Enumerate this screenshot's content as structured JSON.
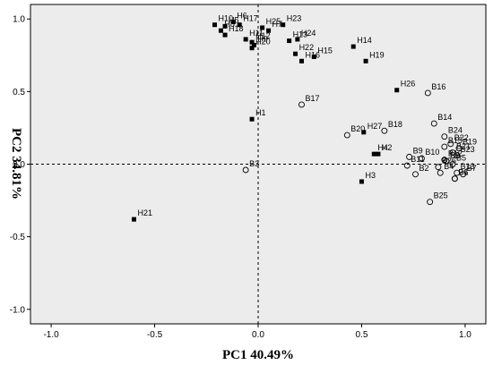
{
  "chart_data": {
    "type": "scatter",
    "title": "",
    "xlabel": "PC1 40.49%",
    "ylabel": "PC2 34.81%",
    "xlim": [
      -1.1,
      1.1
    ],
    "ylim": [
      -1.1,
      1.1
    ],
    "x_ticks": [
      "-1.0",
      "-0.5",
      "0.0",
      "0.5",
      "1.0"
    ],
    "y_ticks": [
      "1.0",
      "0.5",
      "0.0",
      "-0.5",
      "-1.0"
    ],
    "grid": false,
    "reference_lines": [
      0,
      0
    ],
    "plot_background": "#ececec",
    "series": [
      {
        "marker": "filled-square",
        "color": "#000000",
        "points": [
          {
            "label": "H1",
            "x": -0.03,
            "y": 0.31
          },
          {
            "label": "H2",
            "x": 0.58,
            "y": 0.07
          },
          {
            "label": "H3",
            "x": 0.5,
            "y": -0.12
          },
          {
            "label": "H4",
            "x": 0.56,
            "y": 0.07
          },
          {
            "label": "H5",
            "x": -0.16,
            "y": 0.95
          },
          {
            "label": "H6",
            "x": -0.12,
            "y": 0.98
          },
          {
            "label": "H7",
            "x": 0.05,
            "y": 0.92
          },
          {
            "label": "H8",
            "x": -0.18,
            "y": 0.92
          },
          {
            "label": "H9",
            "x": -0.02,
            "y": 0.82
          },
          {
            "label": "H10",
            "x": -0.21,
            "y": 0.96
          },
          {
            "label": "H11",
            "x": -0.06,
            "y": 0.86
          },
          {
            "label": "H12",
            "x": -0.03,
            "y": 0.84
          },
          {
            "label": "H13",
            "x": 0.15,
            "y": 0.85
          },
          {
            "label": "H14",
            "x": 0.46,
            "y": 0.81
          },
          {
            "label": "H15",
            "x": 0.27,
            "y": 0.74
          },
          {
            "label": "H16",
            "x": 0.21,
            "y": 0.71
          },
          {
            "label": "H17",
            "x": -0.09,
            "y": 0.96
          },
          {
            "label": "H18",
            "x": -0.16,
            "y": 0.89
          },
          {
            "label": "H19",
            "x": 0.52,
            "y": 0.71
          },
          {
            "label": "H20",
            "x": -0.03,
            "y": 0.8
          },
          {
            "label": "H21",
            "x": -0.6,
            "y": -0.38
          },
          {
            "label": "H22",
            "x": 0.18,
            "y": 0.76
          },
          {
            "label": "H23",
            "x": 0.12,
            "y": 0.96
          },
          {
            "label": "H24",
            "x": 0.19,
            "y": 0.86
          },
          {
            "label": "H25",
            "x": 0.02,
            "y": 0.94
          },
          {
            "label": "H26",
            "x": 0.67,
            "y": 0.51
          },
          {
            "label": "H27",
            "x": 0.51,
            "y": 0.22
          }
        ]
      },
      {
        "marker": "open-circle",
        "color": "#000000",
        "points": [
          {
            "label": "B1",
            "x": 0.95,
            "y": -0.1
          },
          {
            "label": "B2",
            "x": 0.76,
            "y": -0.07
          },
          {
            "label": "B3",
            "x": -0.06,
            "y": -0.04
          },
          {
            "label": "B4",
            "x": 0.88,
            "y": -0.06
          },
          {
            "label": "B5",
            "x": 0.94,
            "y": 0.0
          },
          {
            "label": "B6",
            "x": 0.95,
            "y": -0.1
          },
          {
            "label": "B7",
            "x": 0.99,
            "y": -0.07
          },
          {
            "label": "B8",
            "x": 0.91,
            "y": 0.02
          },
          {
            "label": "B9",
            "x": 0.73,
            "y": 0.05
          },
          {
            "label": "B10",
            "x": 0.79,
            "y": 0.04
          },
          {
            "label": "B11",
            "x": 0.72,
            "y": -0.01
          },
          {
            "label": "B12",
            "x": 0.9,
            "y": 0.03
          },
          {
            "label": "B13",
            "x": 0.96,
            "y": -0.06
          },
          {
            "label": "B14",
            "x": 0.85,
            "y": 0.28
          },
          {
            "label": "B15",
            "x": 0.9,
            "y": 0.12
          },
          {
            "label": "B16",
            "x": 0.82,
            "y": 0.49
          },
          {
            "label": "B17",
            "x": 0.21,
            "y": 0.41
          },
          {
            "label": "B18",
            "x": 0.61,
            "y": 0.23
          },
          {
            "label": "B19",
            "x": 0.97,
            "y": 0.11
          },
          {
            "label": "B20",
            "x": 0.43,
            "y": 0.2
          },
          {
            "label": "B21",
            "x": 0.94,
            "y": 0.08
          },
          {
            "label": "B22",
            "x": 0.93,
            "y": 0.14
          },
          {
            "label": "B23",
            "x": 0.96,
            "y": 0.06
          },
          {
            "label": "B24",
            "x": 0.9,
            "y": 0.19
          },
          {
            "label": "B25",
            "x": 0.83,
            "y": -0.26
          },
          {
            "label": "B26",
            "x": 0.87,
            "y": -0.02
          }
        ]
      }
    ]
  }
}
